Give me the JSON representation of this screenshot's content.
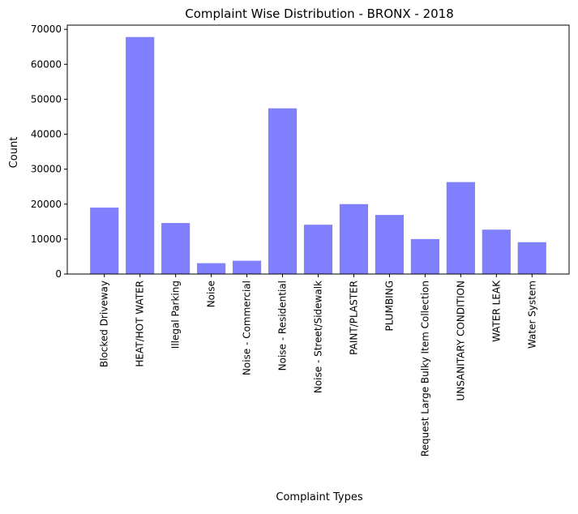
{
  "chart_data": {
    "type": "bar",
    "title": "Complaint Wise Distribution - BRONX - 2018",
    "xlabel": "Complaint Types",
    "ylabel": "Count",
    "categories": [
      "Blocked Driveway",
      "HEAT/HOT WATER",
      "Illegal Parking",
      "Noise",
      "Noise - Commercial",
      "Noise - Residential",
      "Noise - Street/Sidewalk",
      "PAINT/PLASTER",
      "PLUMBING",
      "Request Large Bulky Item Collection",
      "UNSANITARY CONDITION",
      "WATER LEAK",
      "Water System"
    ],
    "values": [
      19000,
      67800,
      14600,
      3100,
      3800,
      47400,
      14100,
      20000,
      16900,
      10000,
      26300,
      12700,
      9100
    ],
    "ylim": [
      0,
      71200
    ],
    "yticks": [
      0,
      10000,
      20000,
      30000,
      40000,
      50000,
      60000,
      70000
    ],
    "bar_color": "#8080ff",
    "grid": false,
    "legend": false
  }
}
